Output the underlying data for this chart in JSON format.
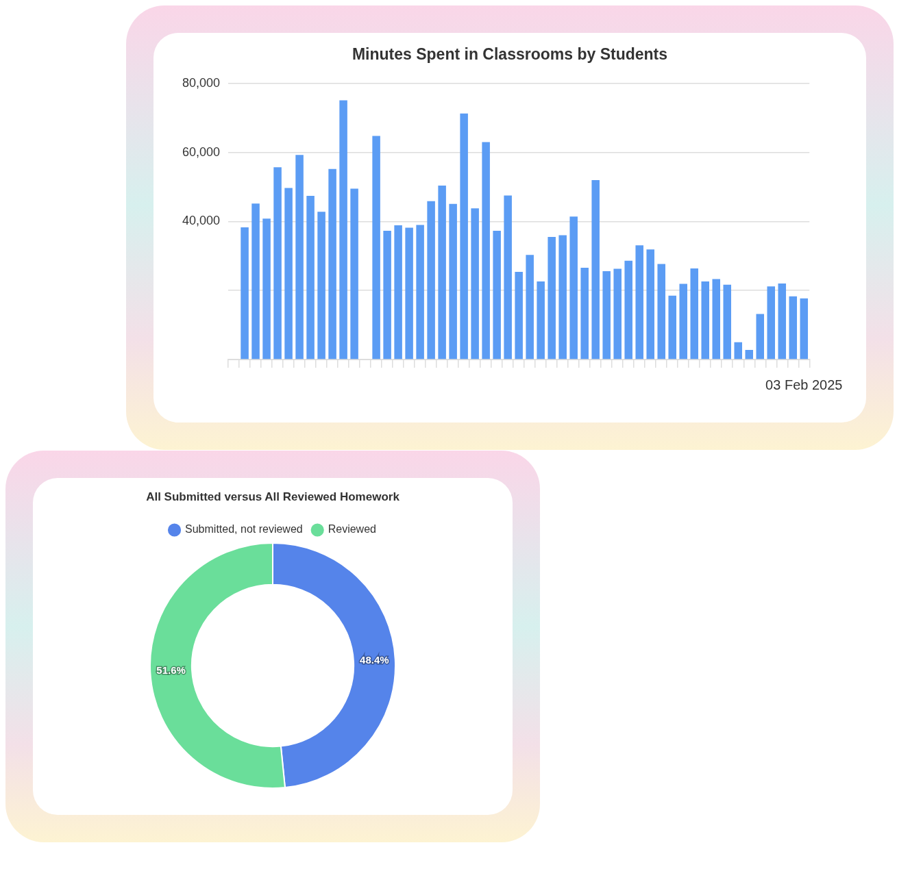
{
  "chart_data": [
    {
      "type": "bar",
      "title": "Minutes Spent in Classrooms by Students",
      "categories": [
        null,
        null,
        null,
        null,
        null,
        null,
        null,
        null,
        null,
        null,
        null,
        null,
        null,
        null,
        null,
        null,
        null,
        null,
        null,
        null,
        null,
        null,
        null,
        null,
        null,
        null,
        null,
        null,
        null,
        null,
        null,
        null,
        null,
        null,
        null,
        null,
        null,
        null,
        null,
        null,
        null,
        null,
        null,
        null,
        null,
        null,
        null,
        null,
        null,
        null,
        null,
        null,
        "03 Feb 2025"
      ],
      "values": [
        null,
        38300,
        45200,
        40800,
        55700,
        49700,
        59300,
        47400,
        42800,
        55200,
        75100,
        49500,
        null,
        64800,
        37300,
        38900,
        38200,
        39000,
        45900,
        50400,
        45100,
        71300,
        43800,
        63000,
        37300,
        47500,
        25400,
        30300,
        22600,
        35500,
        36000,
        41400,
        26600,
        52000,
        25600,
        26300,
        28600,
        33100,
        31900,
        27700,
        18500,
        21900,
        26400,
        22600,
        23300,
        21700,
        5000,
        2800,
        13200,
        21200,
        22000,
        18300,
        17700
      ],
      "color": "#5b9cf4",
      "ylim": [
        0,
        80000
      ],
      "yticks": [
        {
          "value": 0,
          "label": null
        },
        {
          "value": 20000,
          "label": null
        },
        {
          "value": 40000,
          "label": "40,000"
        },
        {
          "value": 60000,
          "label": "60,000"
        },
        {
          "value": 80000,
          "label": "80,000"
        }
      ],
      "grid": "y"
    },
    {
      "type": "donut",
      "title": "All Submitted versus All Reviewed Homework",
      "categories": [
        "Submitted, not reviewed",
        "Reviewed"
      ],
      "values": [
        48.4,
        51.6
      ],
      "colors": [
        "#5584ea",
        "#6ade9a"
      ],
      "value_labels": [
        "48.4%",
        "51.6%"
      ],
      "legend": "top"
    }
  ]
}
